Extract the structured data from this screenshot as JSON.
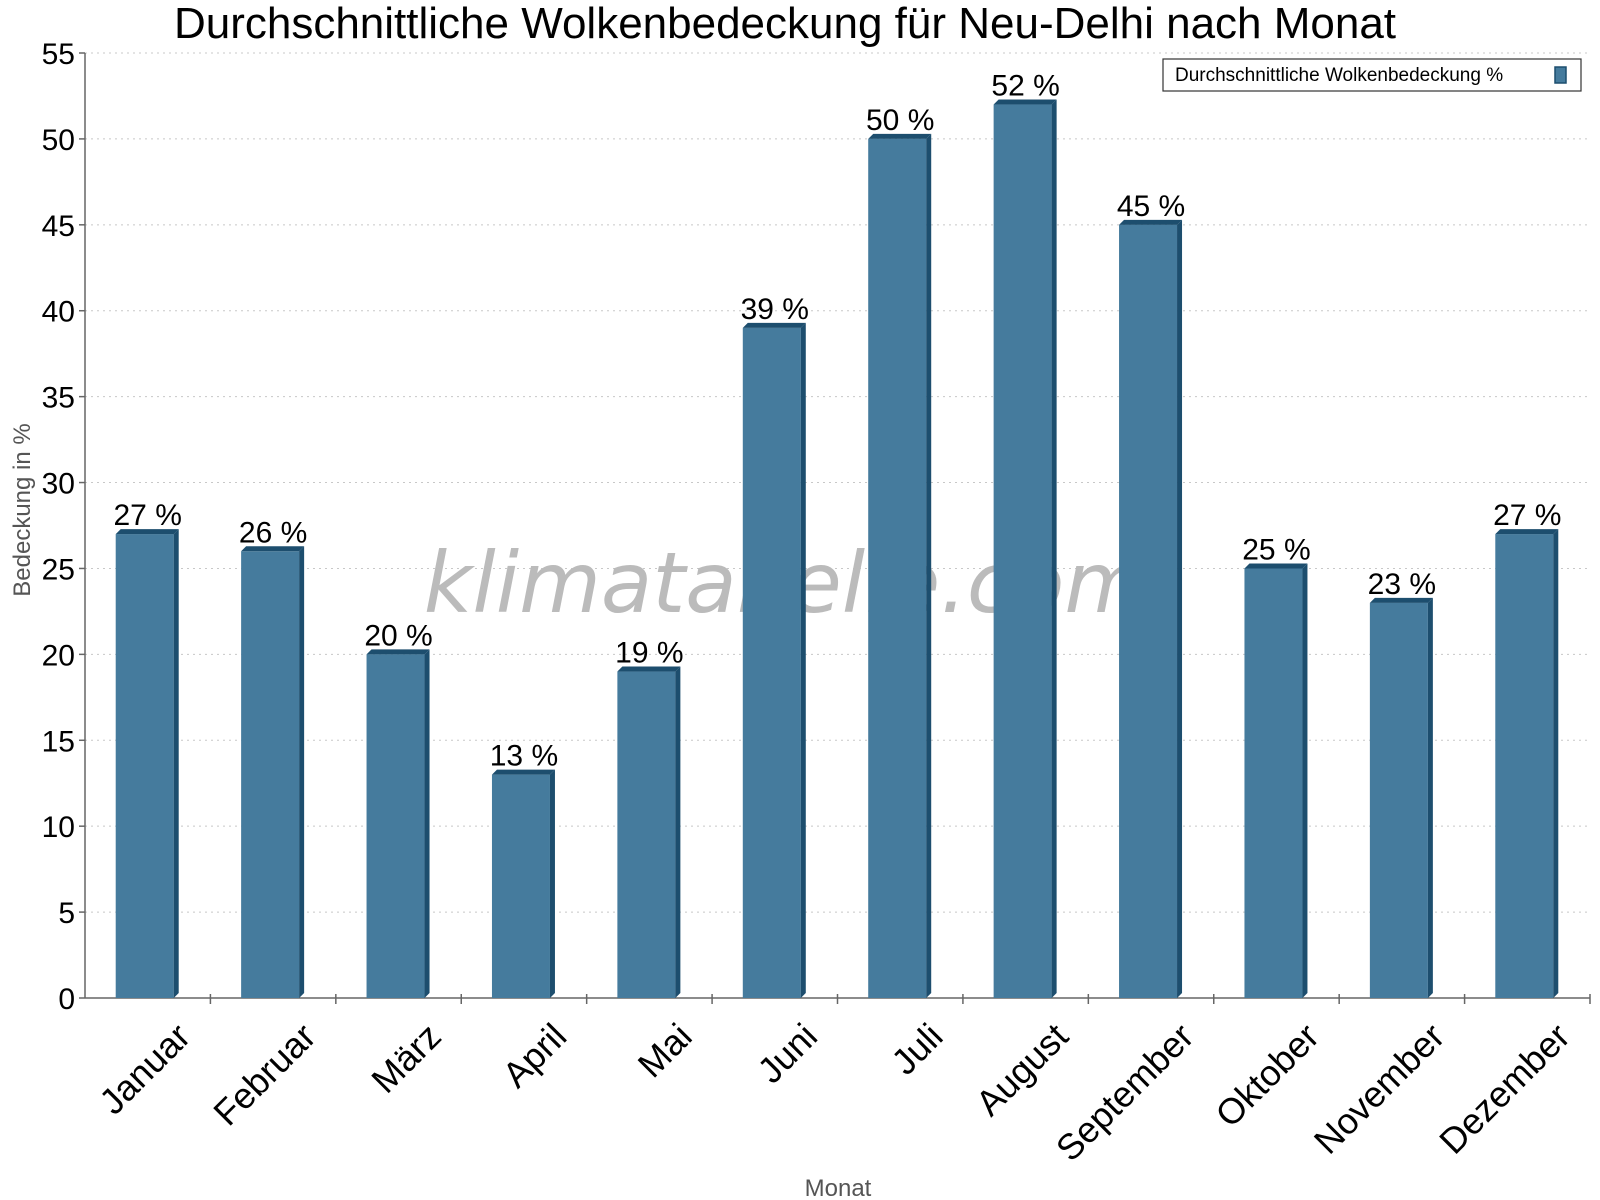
{
  "chart_data": {
    "type": "bar",
    "title": "Durchschnittliche Wolkenbedeckung für Neu-Delhi nach Monat",
    "xlabel": "Monat",
    "ylabel": "Bedeckung in %",
    "categories": [
      "Januar",
      "Februar",
      "März",
      "April",
      "Mai",
      "Juni",
      "Juli",
      "August",
      "September",
      "Oktober",
      "November",
      "Dezember"
    ],
    "series": [
      {
        "name": "Durchschnittliche Wolkenbedeckung %",
        "values": [
          27,
          26,
          20,
          13,
          19,
          39,
          50,
          52,
          45,
          25,
          23,
          27
        ],
        "color": "#457b9d",
        "edge_color": "#1d4e6e"
      }
    ],
    "value_labels": [
      "27 %",
      "26 %",
      "20 %",
      "13 %",
      "19 %",
      "39 %",
      "50 %",
      "52 %",
      "45 %",
      "25 %",
      "23 %",
      "27 %"
    ],
    "ylim": [
      0,
      55
    ],
    "yticks": [
      "0",
      "5",
      "10",
      "15",
      "20",
      "25",
      "30",
      "35",
      "40",
      "45",
      "50",
      "55"
    ],
    "grid": true,
    "legend_position": "top-right"
  },
  "watermark": "klimatabelle.com"
}
